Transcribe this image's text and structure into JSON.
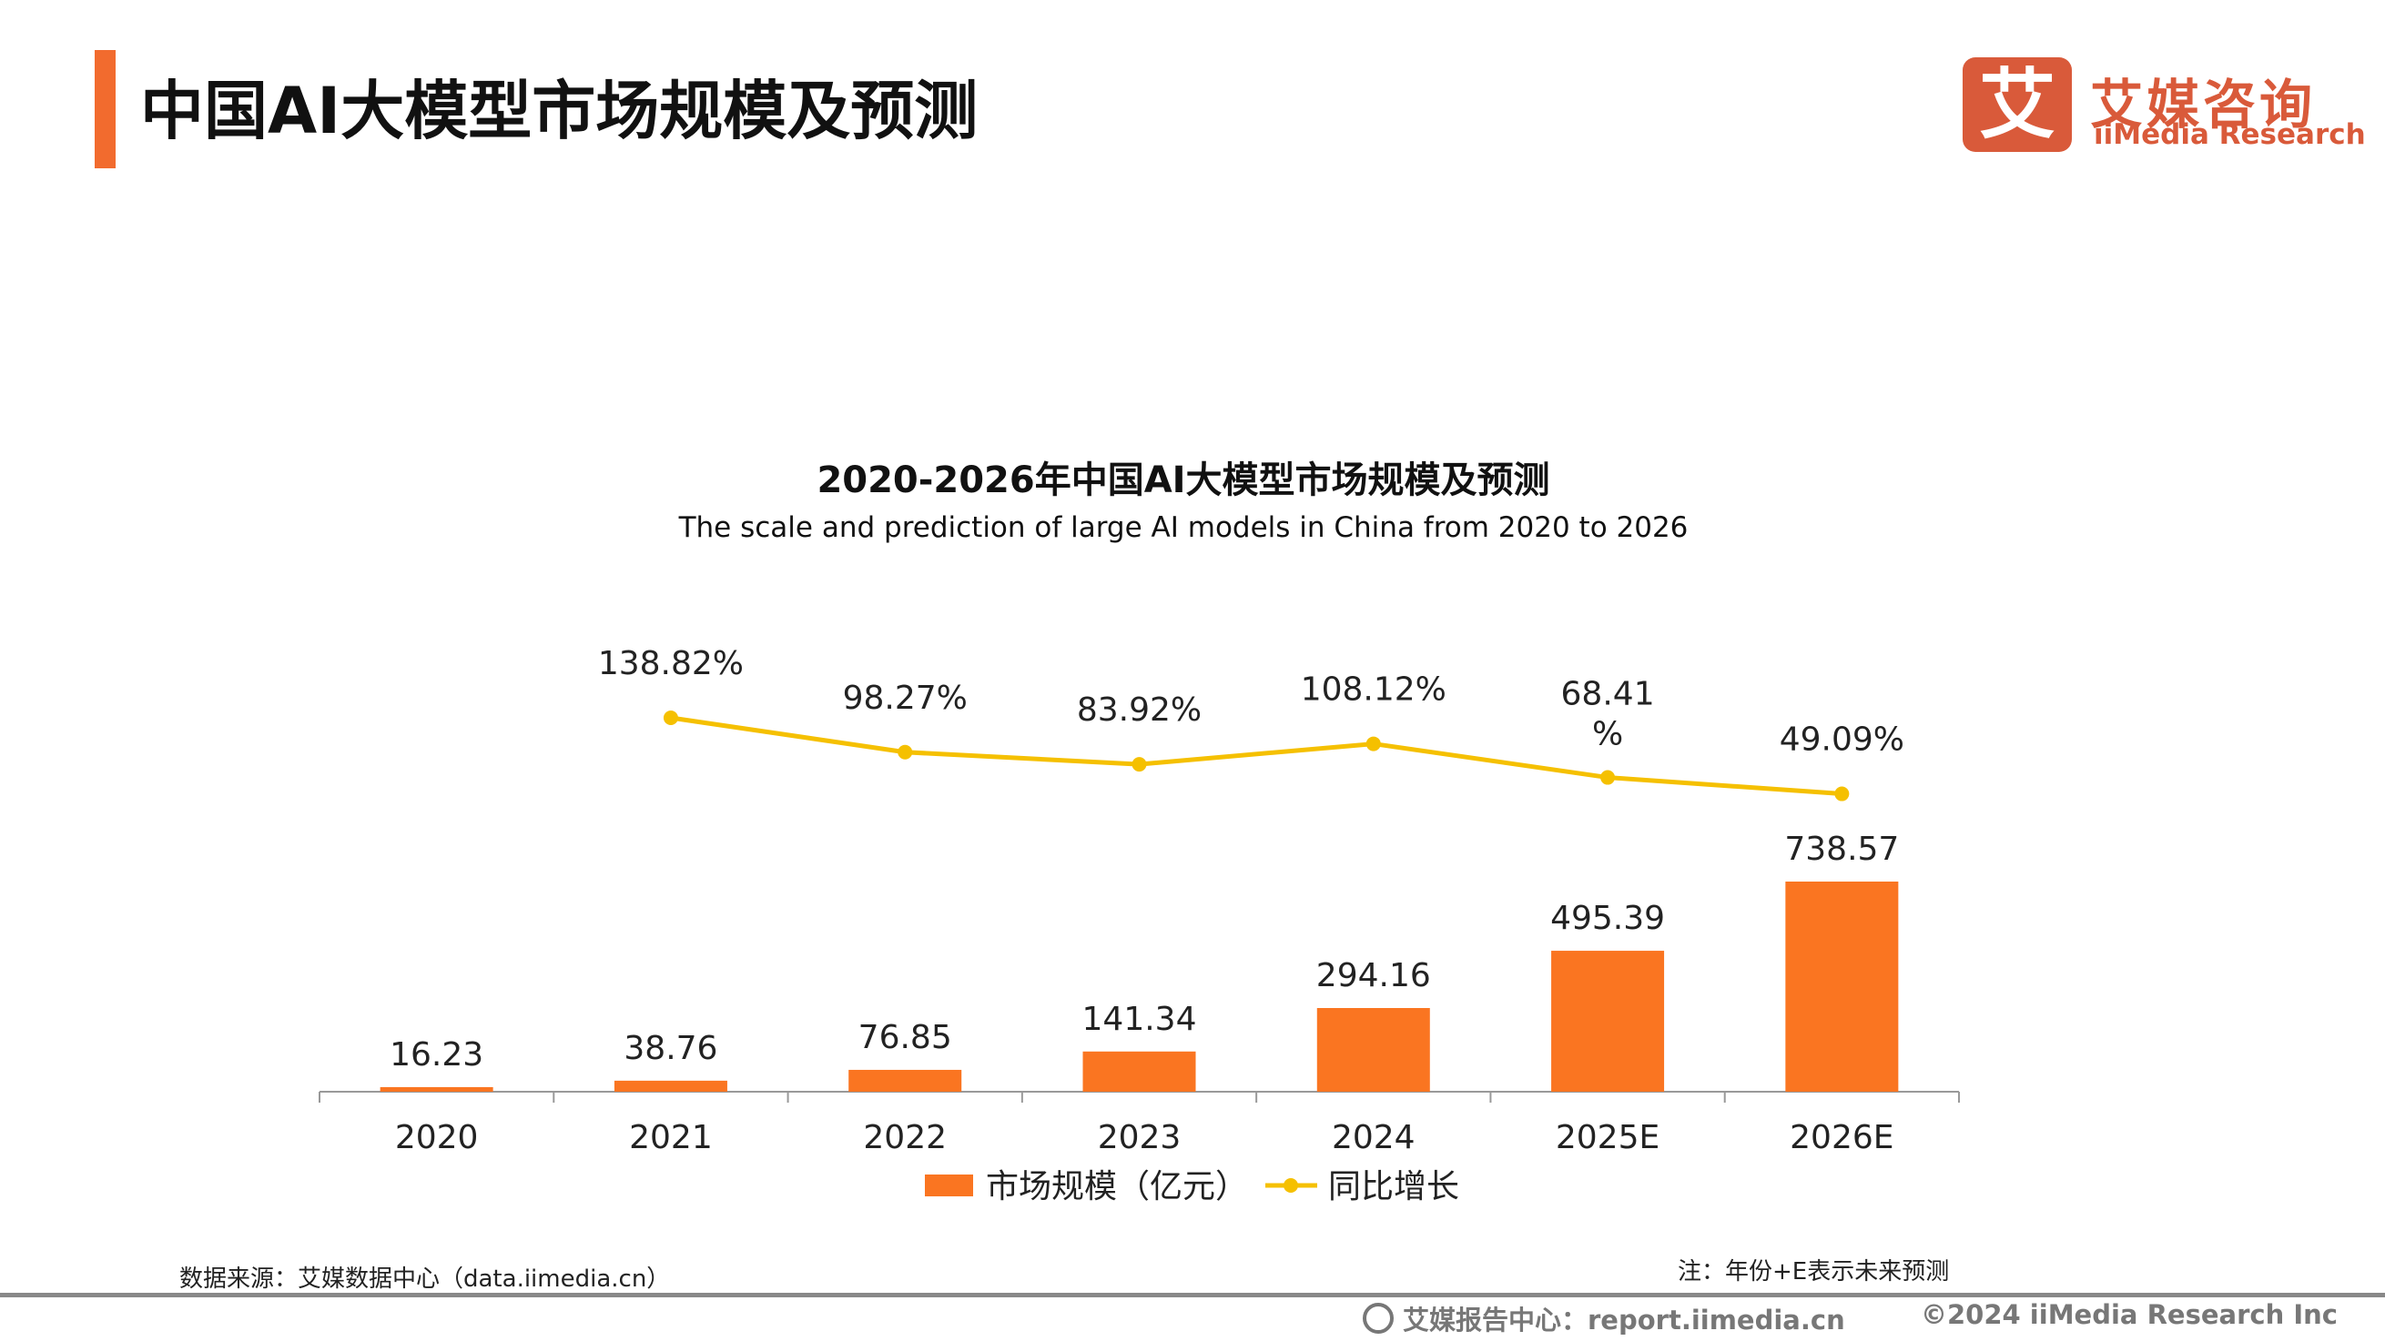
{
  "header": {
    "title": "中国AI大模型市场规模及预测",
    "logo_cn": "艾媒咨询",
    "logo_en": "iiMedia Research",
    "logo_glyph": "艾",
    "accent_color": "#f26b2e",
    "logo_color": "#d95a3a"
  },
  "chart_data": {
    "type": "bar+line",
    "title": "2020-2026年中国AI大模型市场规模及预测",
    "subtitle": "The scale and prediction of large AI models in China from 2020 to 2026",
    "categories": [
      "2020",
      "2021",
      "2022",
      "2023",
      "2024",
      "2025E",
      "2026E"
    ],
    "series": [
      {
        "name": "市场规模（亿元）",
        "type": "bar",
        "color": "#fa7521",
        "values": [
          16.23,
          38.76,
          76.85,
          141.34,
          294.16,
          495.39,
          738.57
        ],
        "labels": [
          "16.23",
          "38.76",
          "76.85",
          "141.34",
          "294.16",
          "495.39",
          "738.57"
        ]
      },
      {
        "name": "同比增长",
        "type": "line",
        "color": "#f5c000",
        "values": [
          null,
          138.82,
          98.27,
          83.92,
          108.12,
          68.41,
          49.09
        ],
        "labels": [
          "",
          "138.82%",
          "98.27%",
          "83.92%",
          "108.12%",
          "68.41\n%",
          "49.09%"
        ]
      }
    ],
    "legend_position": "bottom",
    "grid": false
  },
  "footer": {
    "source": "数据来源：艾媒数据中心（data.iimedia.cn）",
    "note": "注：年份+E表示未来预测",
    "report_center": "艾媒报告中心：report.iimedia.cn",
    "copyright": "©2024  iiMedia Research  Inc"
  }
}
